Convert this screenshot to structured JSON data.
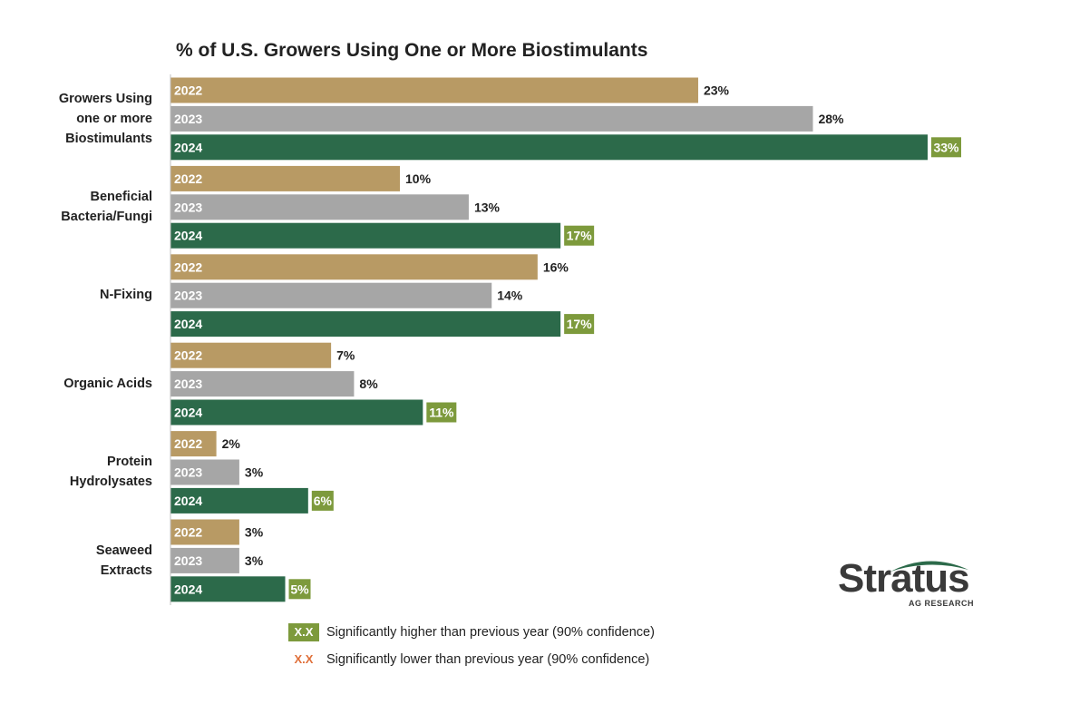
{
  "chart_data": {
    "type": "bar",
    "orientation": "horizontal",
    "title": "% of U.S. Growers Using One or More Biostimulants",
    "categories": [
      [
        "Growers Using",
        "one or more",
        "Biostimulants"
      ],
      [
        "Beneficial",
        "Bacteria/Fungi"
      ],
      [
        "N-Fixing"
      ],
      [
        "Organic Acids"
      ],
      [
        "Protein",
        "Hydrolysates"
      ],
      [
        "Seaweed",
        "Extracts"
      ]
    ],
    "series": [
      {
        "name": "2022",
        "values": [
          23,
          10,
          16,
          7,
          2,
          3
        ],
        "labels": [
          "23%",
          "10%",
          "16%",
          "7%",
          "2%",
          "3%"
        ],
        "color": "#b89a64",
        "significant_higher": [
          false,
          false,
          false,
          false,
          false,
          false
        ]
      },
      {
        "name": "2023",
        "values": [
          28,
          13,
          14,
          8,
          3,
          3
        ],
        "labels": [
          "28%",
          "13%",
          "14%",
          "8%",
          "3%",
          "3%"
        ],
        "color": "#a6a6a6",
        "significant_higher": [
          false,
          false,
          false,
          false,
          false,
          false
        ]
      },
      {
        "name": "2024",
        "values": [
          33,
          17,
          17,
          11,
          6,
          5
        ],
        "labels": [
          "33%",
          "17%",
          "17%",
          "11%",
          "6%",
          "5%"
        ],
        "color": "#2c6a4a",
        "significant_higher": [
          true,
          true,
          true,
          true,
          true,
          true
        ]
      }
    ],
    "xlim": [
      0,
      36
    ],
    "grid": false
  },
  "colors": {
    "sig_higher": "#7d9a3c",
    "sig_lower": "#e0703a"
  },
  "legend": [
    {
      "marker": "X.X",
      "text": "Significantly higher than previous year (90% confidence)",
      "kind": "higher"
    },
    {
      "marker": "X.X",
      "text": "Significantly lower than previous year (90% confidence)",
      "kind": "lower"
    }
  ],
  "logo": {
    "name": "Stratus",
    "subtitle": "AG RESEARCH"
  }
}
